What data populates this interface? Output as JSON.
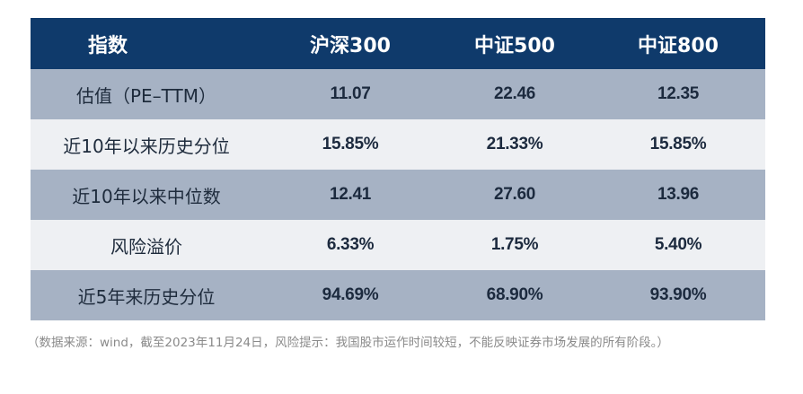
{
  "table": {
    "headers": [
      "指数",
      "沪深300",
      "中证500",
      "中证800"
    ],
    "rows": [
      {
        "label": "估值（PE–TTM）",
        "values": [
          "11.07",
          "22.46",
          "12.35"
        ]
      },
      {
        "label": "近10年以来历史分位",
        "values": [
          "15.85%",
          "21.33%",
          "15.85%"
        ]
      },
      {
        "label": "近10年以来中位数",
        "values": [
          "12.41",
          "27.60",
          "13.96"
        ]
      },
      {
        "label": "风险溢价",
        "values": [
          "6.33%",
          "1.75%",
          "5.40%"
        ]
      },
      {
        "label": "近5年来历史分位",
        "values": [
          "94.69%",
          "68.90%",
          "93.90%"
        ]
      }
    ]
  },
  "footnote": "（数据来源：wind，截至2023年11月24日，风险提示：我国股市运作时间较短，不能反映证券市场发展的所有阶段。）",
  "colors": {
    "header_bg": "#0f3a6b",
    "row_dark": "#a6b2c4",
    "row_light": "#eef0f3"
  }
}
